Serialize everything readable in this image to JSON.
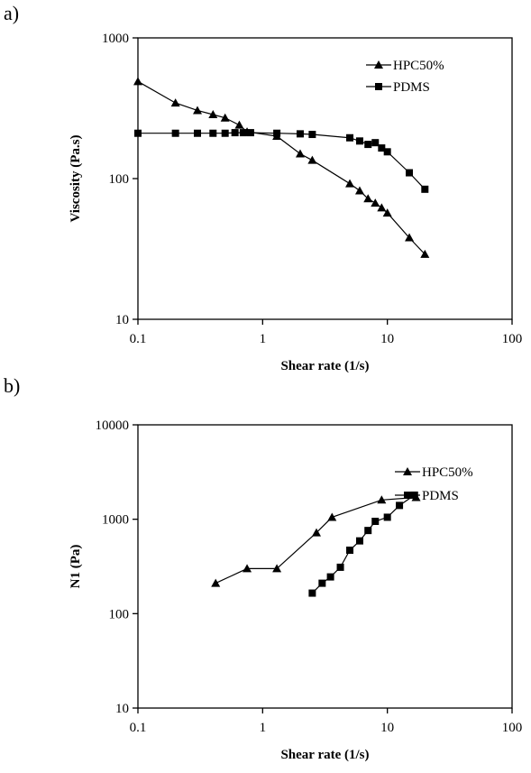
{
  "chart_data": [
    {
      "type": "line",
      "panel_label": "a)",
      "title": "",
      "xlabel": "Shear rate (1/s)",
      "ylabel": "Viscosity (Pa.s)",
      "xscale": "log",
      "yscale": "log",
      "xlim": [
        0.1,
        100
      ],
      "ylim": [
        10,
        1000
      ],
      "x_ticks": [
        0.1,
        1,
        10,
        100
      ],
      "x_tick_labels": [
        "0.1",
        "1",
        "10",
        "100"
      ],
      "y_ticks": [
        10,
        100,
        1000
      ],
      "y_tick_labels": [
        "10",
        "100",
        "1000"
      ],
      "legend_position": "top-right",
      "grid": false,
      "series": [
        {
          "name": "HPC50%",
          "marker": "triangle",
          "x": [
            0.1,
            0.2,
            0.3,
            0.4,
            0.5,
            0.65,
            0.75,
            1.3,
            2,
            2.5,
            5,
            6,
            7,
            8,
            9,
            10,
            15,
            20
          ],
          "y": [
            490,
            345,
            305,
            285,
            270,
            240,
            215,
            200,
            150,
            135,
            92,
            82,
            72,
            67,
            62,
            57,
            38,
            29
          ]
        },
        {
          "name": "PDMS",
          "marker": "square",
          "x": [
            0.1,
            0.2,
            0.3,
            0.4,
            0.5,
            0.6,
            0.7,
            0.8,
            1.3,
            2,
            2.5,
            5,
            6,
            7,
            8,
            9,
            10,
            15,
            20
          ],
          "y": [
            210,
            210,
            210,
            210,
            210,
            212,
            212,
            212,
            210,
            208,
            206,
            195,
            185,
            175,
            180,
            165,
            155,
            110,
            84
          ]
        }
      ]
    },
    {
      "type": "line",
      "panel_label": "b)",
      "title": "",
      "xlabel": "Shear rate (1/s)",
      "ylabel": "N1 (Pa)",
      "xscale": "log",
      "yscale": "log",
      "xlim": [
        0.1,
        100
      ],
      "ylim": [
        10,
        10000
      ],
      "x_ticks": [
        0.1,
        1,
        10,
        100
      ],
      "x_tick_labels": [
        "0.1",
        "1",
        "10",
        "100"
      ],
      "y_ticks": [
        10,
        100,
        1000,
        10000
      ],
      "y_tick_labels": [
        "10",
        "100",
        "1000",
        "10000"
      ],
      "legend_position": "top-right",
      "grid": false,
      "series": [
        {
          "name": "HPC50%",
          "marker": "triangle",
          "x": [
            0.42,
            0.75,
            1.3,
            2.7,
            3.6,
            9,
            17
          ],
          "y": [
            210,
            300,
            300,
            720,
            1050,
            1600,
            1700
          ]
        },
        {
          "name": "PDMS",
          "marker": "square",
          "x": [
            2.5,
            3,
            3.5,
            4.2,
            5,
            6,
            7,
            8,
            10,
            12.5,
            16.5
          ],
          "y": [
            165,
            210,
            245,
            310,
            470,
            590,
            760,
            950,
            1050,
            1400,
            1800
          ]
        }
      ]
    }
  ]
}
